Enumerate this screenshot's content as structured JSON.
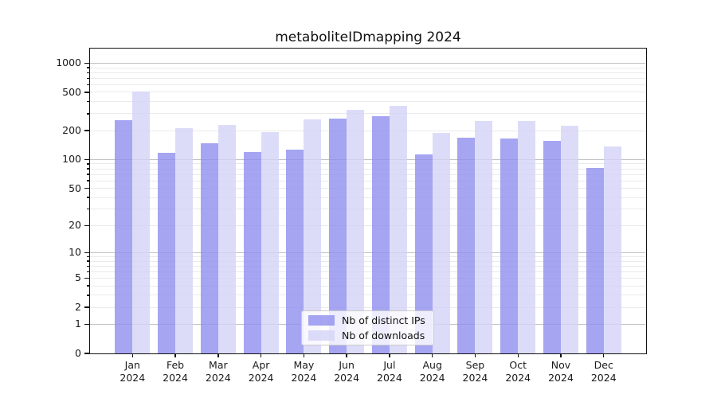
{
  "chart_data": {
    "type": "bar",
    "title": "metaboliteIDmapping 2024",
    "categories": [
      "Jan",
      "Feb",
      "Mar",
      "Apr",
      "May",
      "Jun",
      "Jul",
      "Aug",
      "Sep",
      "Oct",
      "Nov",
      "Dec"
    ],
    "x_year": "2024",
    "series": [
      {
        "name": "Nb of distinct IPs",
        "color": "#8f8fef",
        "values": [
          258,
          118,
          148,
          120,
          126,
          265,
          282,
          113,
          170,
          165,
          158,
          81
        ]
      },
      {
        "name": "Nb of downloads",
        "color": "#d3d3f7",
        "values": [
          509,
          212,
          230,
          193,
          262,
          327,
          360,
          190,
          254,
          252,
          225,
          136
        ]
      }
    ],
    "y_axis": {
      "scale": "log10(value+1)",
      "ticks_labeled": [
        0,
        1,
        2,
        5,
        10,
        20,
        50,
        100,
        200,
        500,
        1000
      ],
      "ticks_major_grid": [
        1,
        10,
        100,
        1000
      ],
      "ticks_minor_unlabeled": [
        3,
        4,
        6,
        7,
        8,
        9,
        30,
        40,
        60,
        70,
        80,
        90,
        300,
        400,
        600,
        700,
        800,
        900
      ],
      "ylim": [
        0,
        1400
      ]
    },
    "legend_position": "lower center",
    "grid": true,
    "colors": {
      "grid_major": "#c3c3c3",
      "grid_minor": "#eaeaea",
      "spine": "#111111",
      "text": "#1a1a1a"
    }
  }
}
